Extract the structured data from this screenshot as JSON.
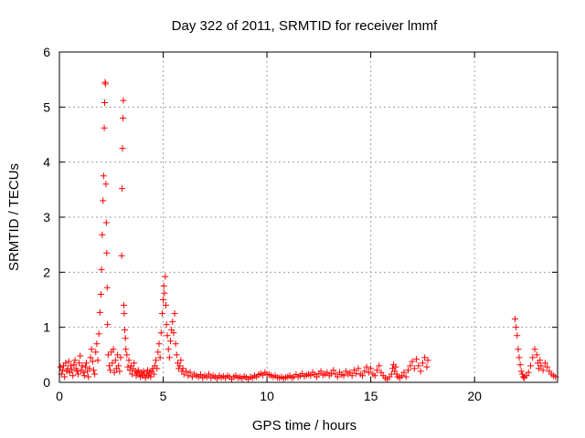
{
  "chart_data": {
    "type": "scatter",
    "title": "Day 322 of 2011, SRMTID for receiver lmmf",
    "xlabel": "GPS time / hours",
    "ylabel": "SRMTID / TECUs",
    "xlim": [
      0,
      24
    ],
    "ylim": [
      0,
      6
    ],
    "x_ticks": [
      0,
      5,
      10,
      15,
      20
    ],
    "y_ticks": [
      0,
      1,
      2,
      3,
      4,
      5,
      6
    ],
    "grid": true,
    "marker": "+",
    "color": "#ff0000",
    "series": [
      {
        "name": "SRMTID",
        "points": [
          [
            0.05,
            0.28
          ],
          [
            0.1,
            0.15
          ],
          [
            0.15,
            0.22
          ],
          [
            0.2,
            0.3
          ],
          [
            0.25,
            0.1
          ],
          [
            0.3,
            0.35
          ],
          [
            0.35,
            0.2
          ],
          [
            0.4,
            0.25
          ],
          [
            0.45,
            0.38
          ],
          [
            0.5,
            0.18
          ],
          [
            0.55,
            0.3
          ],
          [
            0.6,
            0.22
          ],
          [
            0.65,
            0.12
          ],
          [
            0.7,
            0.32
          ],
          [
            0.75,
            0.4
          ],
          [
            0.8,
            0.25
          ],
          [
            0.85,
            0.2
          ],
          [
            0.9,
            0.15
          ],
          [
            0.95,
            0.35
          ],
          [
            1.0,
            0.48
          ],
          [
            1.05,
            0.22
          ],
          [
            1.1,
            0.3
          ],
          [
            1.15,
            0.18
          ],
          [
            1.2,
            0.12
          ],
          [
            1.25,
            0.28
          ],
          [
            1.3,
            0.35
          ],
          [
            1.35,
            0.2
          ],
          [
            1.4,
            0.1
          ],
          [
            1.45,
            0.25
          ],
          [
            1.5,
            0.45
          ],
          [
            1.55,
            0.6
          ],
          [
            1.6,
            0.38
          ],
          [
            1.65,
            0.22
          ],
          [
            1.7,
            0.15
          ],
          [
            1.75,
            0.55
          ],
          [
            1.8,
            0.7
          ],
          [
            1.85,
            0.4
          ],
          [
            1.9,
            0.88
          ],
          [
            1.95,
            1.27
          ],
          [
            2.0,
            1.6
          ],
          [
            2.03,
            2.05
          ],
          [
            2.06,
            2.68
          ],
          [
            2.1,
            3.3
          ],
          [
            2.13,
            3.75
          ],
          [
            2.16,
            4.62
          ],
          [
            2.18,
            5.08
          ],
          [
            2.2,
            5.45
          ],
          [
            2.22,
            5.42
          ],
          [
            2.24,
            3.6
          ],
          [
            2.26,
            2.9
          ],
          [
            2.28,
            2.35
          ],
          [
            2.3,
            1.72
          ],
          [
            2.32,
            1.05
          ],
          [
            2.35,
            0.5
          ],
          [
            2.4,
            0.3
          ],
          [
            2.45,
            0.22
          ],
          [
            2.5,
            0.55
          ],
          [
            2.55,
            0.35
          ],
          [
            2.6,
            0.6
          ],
          [
            2.65,
            0.18
          ],
          [
            2.7,
            0.4
          ],
          [
            2.75,
            0.25
          ],
          [
            2.8,
            0.5
          ],
          [
            2.85,
            0.3
          ],
          [
            2.9,
            0.2
          ],
          [
            2.95,
            0.45
          ],
          [
            3.0,
            2.3
          ],
          [
            3.02,
            3.52
          ],
          [
            3.04,
            4.25
          ],
          [
            3.06,
            4.8
          ],
          [
            3.08,
            5.12
          ],
          [
            3.1,
            1.4
          ],
          [
            3.12,
            1.25
          ],
          [
            3.15,
            0.95
          ],
          [
            3.18,
            0.8
          ],
          [
            3.2,
            0.6
          ],
          [
            3.25,
            0.5
          ],
          [
            3.3,
            0.28
          ],
          [
            3.35,
            0.4
          ],
          [
            3.4,
            0.22
          ],
          [
            3.45,
            0.3
          ],
          [
            3.5,
            0.15
          ],
          [
            3.55,
            0.25
          ],
          [
            3.6,
            0.35
          ],
          [
            3.65,
            0.2
          ],
          [
            3.7,
            0.12
          ],
          [
            3.75,
            0.18
          ],
          [
            3.8,
            0.22
          ],
          [
            3.85,
            0.15
          ],
          [
            3.9,
            0.1
          ],
          [
            3.95,
            0.18
          ],
          [
            4.0,
            0.12
          ],
          [
            4.05,
            0.2
          ],
          [
            4.1,
            0.15
          ],
          [
            4.15,
            0.08
          ],
          [
            4.2,
            0.15
          ],
          [
            4.25,
            0.22
          ],
          [
            4.3,
            0.12
          ],
          [
            4.35,
            0.18
          ],
          [
            4.4,
            0.1
          ],
          [
            4.45,
            0.2
          ],
          [
            4.5,
            0.25
          ],
          [
            4.55,
            0.15
          ],
          [
            4.6,
            0.3
          ],
          [
            4.65,
            0.4
          ],
          [
            4.7,
            0.25
          ],
          [
            4.75,
            0.55
          ],
          [
            4.8,
            0.7
          ],
          [
            4.85,
            0.45
          ],
          [
            4.9,
            0.9
          ],
          [
            4.95,
            1.25
          ],
          [
            5.0,
            1.5
          ],
          [
            5.03,
            1.75
          ],
          [
            5.06,
            1.62
          ],
          [
            5.1,
            1.92
          ],
          [
            5.13,
            1.4
          ],
          [
            5.16,
            1.05
          ],
          [
            5.2,
            0.85
          ],
          [
            5.25,
            0.6
          ],
          [
            5.3,
            0.45
          ],
          [
            5.35,
            0.75
          ],
          [
            5.4,
            0.95
          ],
          [
            5.45,
            1.1
          ],
          [
            5.5,
            0.9
          ],
          [
            5.55,
            1.25
          ],
          [
            5.6,
            0.7
          ],
          [
            5.65,
            0.5
          ],
          [
            5.7,
            0.35
          ],
          [
            5.75,
            0.25
          ],
          [
            5.8,
            0.3
          ],
          [
            5.85,
            0.4
          ],
          [
            5.9,
            0.2
          ],
          [
            5.95,
            0.25
          ],
          [
            6.0,
            0.15
          ],
          [
            6.1,
            0.2
          ],
          [
            6.2,
            0.12
          ],
          [
            6.3,
            0.18
          ],
          [
            6.4,
            0.1
          ],
          [
            6.5,
            0.15
          ],
          [
            6.6,
            0.12
          ],
          [
            6.7,
            0.1
          ],
          [
            6.8,
            0.14
          ],
          [
            6.9,
            0.08
          ],
          [
            7.0,
            0.12
          ],
          [
            7.1,
            0.1
          ],
          [
            7.2,
            0.15
          ],
          [
            7.3,
            0.08
          ],
          [
            7.4,
            0.12
          ],
          [
            7.5,
            0.1
          ],
          [
            7.6,
            0.07
          ],
          [
            7.7,
            0.12
          ],
          [
            7.8,
            0.09
          ],
          [
            7.9,
            0.11
          ],
          [
            8.0,
            0.08
          ],
          [
            8.1,
            0.12
          ],
          [
            8.2,
            0.1
          ],
          [
            8.3,
            0.06
          ],
          [
            8.4,
            0.1
          ],
          [
            8.5,
            0.12
          ],
          [
            8.6,
            0.08
          ],
          [
            8.7,
            0.1
          ],
          [
            8.8,
            0.07
          ],
          [
            8.9,
            0.11
          ],
          [
            9.0,
            0.09
          ],
          [
            9.1,
            0.06
          ],
          [
            9.2,
            0.1
          ],
          [
            9.3,
            0.08
          ],
          [
            9.4,
            0.12
          ],
          [
            9.5,
            0.1
          ],
          [
            9.6,
            0.14
          ],
          [
            9.7,
            0.16
          ],
          [
            9.8,
            0.13
          ],
          [
            9.9,
            0.18
          ],
          [
            10.0,
            0.15
          ],
          [
            10.1,
            0.14
          ],
          [
            10.2,
            0.12
          ],
          [
            10.3,
            0.1
          ],
          [
            10.4,
            0.12
          ],
          [
            10.5,
            0.09
          ],
          [
            10.6,
            0.08
          ],
          [
            10.7,
            0.1
          ],
          [
            10.8,
            0.07
          ],
          [
            10.9,
            0.09
          ],
          [
            11.0,
            0.1
          ],
          [
            11.1,
            0.12
          ],
          [
            11.2,
            0.08
          ],
          [
            11.3,
            0.1
          ],
          [
            11.4,
            0.14
          ],
          [
            11.5,
            0.1
          ],
          [
            11.6,
            0.12
          ],
          [
            11.7,
            0.16
          ],
          [
            11.8,
            0.11
          ],
          [
            11.9,
            0.13
          ],
          [
            12.0,
            0.15
          ],
          [
            12.1,
            0.12
          ],
          [
            12.2,
            0.18
          ],
          [
            12.3,
            0.14
          ],
          [
            12.4,
            0.1
          ],
          [
            12.5,
            0.16
          ],
          [
            12.6,
            0.2
          ],
          [
            12.7,
            0.13
          ],
          [
            12.8,
            0.15
          ],
          [
            12.9,
            0.18
          ],
          [
            13.0,
            0.12
          ],
          [
            13.1,
            0.16
          ],
          [
            13.2,
            0.22
          ],
          [
            13.3,
            0.15
          ],
          [
            13.4,
            0.1
          ],
          [
            13.5,
            0.18
          ],
          [
            13.6,
            0.14
          ],
          [
            13.7,
            0.12
          ],
          [
            13.8,
            0.2
          ],
          [
            13.9,
            0.15
          ],
          [
            14.0,
            0.18
          ],
          [
            14.1,
            0.12
          ],
          [
            14.2,
            0.22
          ],
          [
            14.3,
            0.16
          ],
          [
            14.4,
            0.25
          ],
          [
            14.5,
            0.15
          ],
          [
            14.6,
            0.12
          ],
          [
            14.7,
            0.2
          ],
          [
            14.8,
            0.28
          ],
          [
            14.9,
            0.18
          ],
          [
            15.0,
            0.25
          ],
          [
            15.1,
            0.15
          ],
          [
            15.2,
            0.12
          ],
          [
            15.3,
            0.22
          ],
          [
            15.4,
            0.3
          ],
          [
            15.5,
            0.18
          ],
          [
            15.6,
            0.12
          ],
          [
            15.7,
            0.08
          ],
          [
            15.8,
            0.05
          ],
          [
            15.9,
            0.1
          ],
          [
            16.0,
            0.15
          ],
          [
            16.05,
            0.25
          ],
          [
            16.1,
            0.32
          ],
          [
            16.15,
            0.2
          ],
          [
            16.2,
            0.28
          ],
          [
            16.25,
            0.15
          ],
          [
            16.3,
            0.1
          ],
          [
            16.4,
            0.08
          ],
          [
            16.5,
            0.12
          ],
          [
            16.6,
            0.18
          ],
          [
            16.7,
            0.1
          ],
          [
            16.8,
            0.22
          ],
          [
            16.9,
            0.3
          ],
          [
            17.0,
            0.38
          ],
          [
            17.1,
            0.25
          ],
          [
            17.2,
            0.42
          ],
          [
            17.3,
            0.3
          ],
          [
            17.4,
            0.2
          ],
          [
            17.5,
            0.35
          ],
          [
            17.6,
            0.45
          ],
          [
            17.7,
            0.28
          ],
          [
            17.75,
            0.4
          ],
          [
            21.95,
            1.15
          ],
          [
            22.0,
            1.0
          ],
          [
            22.05,
            0.85
          ],
          [
            22.1,
            0.6
          ],
          [
            22.15,
            0.45
          ],
          [
            22.2,
            0.32
          ],
          [
            22.25,
            0.2
          ],
          [
            22.3,
            0.15
          ],
          [
            22.35,
            0.1
          ],
          [
            22.4,
            0.08
          ],
          [
            22.5,
            0.12
          ],
          [
            22.6,
            0.18
          ],
          [
            22.7,
            0.3
          ],
          [
            22.8,
            0.45
          ],
          [
            22.9,
            0.6
          ],
          [
            23.0,
            0.5
          ],
          [
            23.05,
            0.35
          ],
          [
            23.1,
            0.25
          ],
          [
            23.15,
            0.4
          ],
          [
            23.2,
            0.3
          ],
          [
            23.3,
            0.22
          ],
          [
            23.4,
            0.35
          ],
          [
            23.5,
            0.28
          ],
          [
            23.6,
            0.2
          ],
          [
            23.7,
            0.15
          ],
          [
            23.8,
            0.12
          ],
          [
            23.9,
            0.1
          ]
        ]
      }
    ]
  }
}
